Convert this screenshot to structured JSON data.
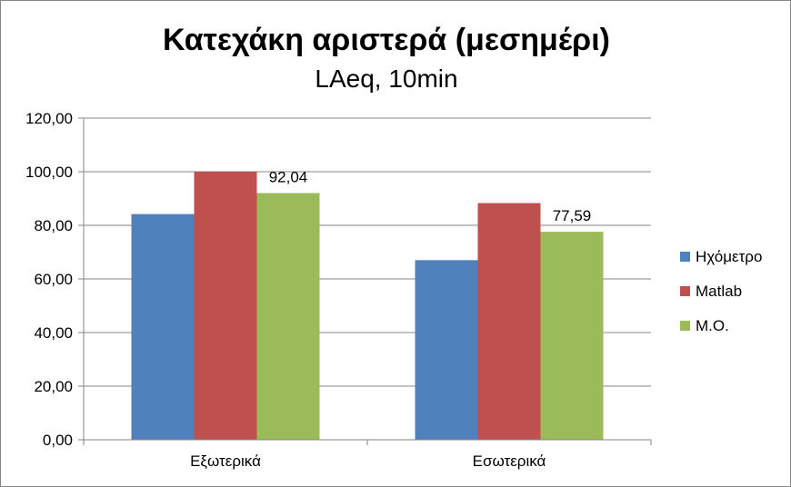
{
  "chart_data": {
    "type": "bar",
    "title": "Κατεχάκη αριστερά (μεσημέρι)",
    "subtitle": "LAeq, 10min",
    "categories": [
      "Εξωτερικά",
      "Εσωτερικά"
    ],
    "series": [
      {
        "name": "Ηχόμετρο",
        "values": [
          84.2,
          67.0
        ],
        "color": "#4f81bd"
      },
      {
        "name": "Matlab",
        "values": [
          100.0,
          88.3
        ],
        "color": "#c0504d"
      },
      {
        "name": "Μ.Ο.",
        "values": [
          92.04,
          77.59
        ],
        "color": "#9bbb59"
      }
    ],
    "data_labels": [
      {
        "series": 2,
        "category": 0,
        "text": "92,04"
      },
      {
        "series": 2,
        "category": 1,
        "text": "77,59"
      }
    ],
    "ylim": [
      0,
      120
    ],
    "yticks": [
      "0,00",
      "20,00",
      "40,00",
      "60,00",
      "80,00",
      "100,00",
      "120,00"
    ],
    "grid": true,
    "legend_position": "right"
  }
}
